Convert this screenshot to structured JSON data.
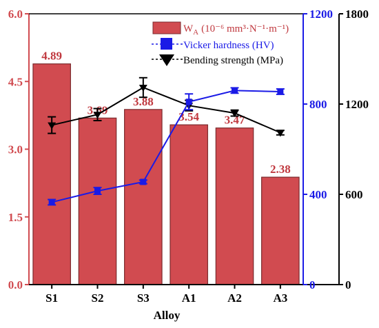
{
  "chart_data": {
    "type": "bar",
    "categories": [
      "S1",
      "S2",
      "S3",
      "A1",
      "A2",
      "A3"
    ],
    "xlabel": "Alloy",
    "series": [
      {
        "name": "W",
        "name_sub": "A",
        "name_units": "(10⁻⁶ mm³·N⁻¹·m⁻¹)",
        "kind": "bar",
        "axis": "left",
        "color": "#d14b50",
        "values": [
          4.89,
          3.69,
          3.88,
          3.54,
          3.47,
          2.38
        ],
        "labels": [
          "4.89",
          "3.69",
          "3.88",
          "3.54",
          "3.47",
          "2.38"
        ]
      },
      {
        "name": "Vicker hardness (HV)",
        "kind": "line",
        "axis": "right-inner",
        "color": "#1a1ae6",
        "marker": "square",
        "values": [
          365,
          415,
          455,
          810,
          860,
          855
        ],
        "errors": [
          12,
          15,
          8,
          35,
          12,
          12
        ]
      },
      {
        "name": "Bending strength (MPa)",
        "kind": "line",
        "axis": "right-outer",
        "color": "#000000",
        "marker": "triangle-down",
        "values": [
          1060,
          1130,
          1310,
          1190,
          1140,
          1010
        ],
        "errors": [
          55,
          40,
          65,
          35,
          20,
          15
        ]
      }
    ],
    "axes": {
      "left": {
        "min": 0,
        "max": 6.0,
        "ticks": [
          "0.0",
          "1.5",
          "3.0",
          "4.5",
          "6.0"
        ],
        "color": "#d14b50"
      },
      "right_inner": {
        "min": 0,
        "max": 1200,
        "ticks": [
          "0",
          "400",
          "800",
          "1200"
        ],
        "color": "#1a1ae6"
      },
      "right_outer": {
        "min": 0,
        "max": 1800,
        "ticks": [
          "0",
          "600",
          "1200",
          "1800"
        ],
        "color": "#000000"
      }
    },
    "legend_position": "top-right"
  }
}
